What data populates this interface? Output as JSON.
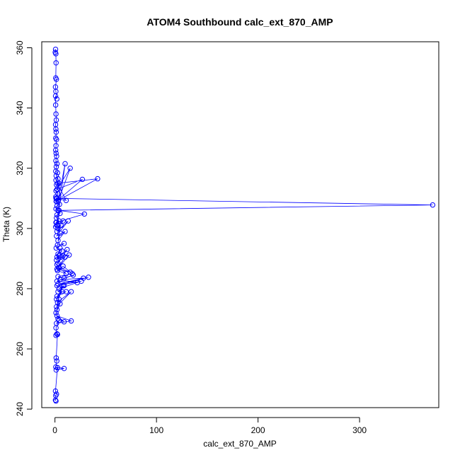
{
  "chart_data": {
    "type": "line",
    "title": "ATOM4 Southbound calc_ext_870_AMP",
    "xlabel": "calc_ext_870_AMP",
    "ylabel": "Theta (K)",
    "xlim": [
      -13,
      378
    ],
    "ylim": [
      240.5,
      362
    ],
    "x_ticks": [
      0,
      100,
      200,
      300
    ],
    "y_ticks": [
      240,
      260,
      280,
      300,
      320,
      340,
      360
    ],
    "grid": false,
    "colors": {
      "series": "#0000ff",
      "axis": "#000000"
    },
    "marker": "open-circle",
    "series": [
      {
        "x": [
          0.3,
          0.6,
          0.9,
          1.1,
          0.8,
          1.4,
          0.5,
          0.9,
          1.8,
          0.6,
          0.7,
          1.0,
          1.3,
          0.6,
          0.9,
          1.2,
          0.8,
          1.5,
          1.0,
          0.7,
          1.1,
          1.6,
          0.9,
          2.0,
          1.3,
          0.8,
          2.5,
          1.2,
          3.0,
          1.0,
          4.0,
          1.5,
          2.2,
          1.0,
          3.0,
          0.8,
          2.0,
          3.5,
          1.2,
          4.5,
          2.0,
          1.0,
          3.0,
          5.0,
          2.0,
          1.5,
          4.0,
          1.0,
          2.5,
          0.7,
          1.8,
          10.0,
          3.0,
          15.0,
          2.0,
          27.0,
          1.5,
          42.0,
          2.5,
          11.0,
          1.0,
          372.0,
          4.0,
          29.0,
          1.5,
          8.0,
          3.0,
          6.0,
          2.0,
          13.0,
          1.5,
          10.0,
          3.0,
          5.0,
          2.5,
          9.0,
          1.2,
          7.0,
          3.0,
          5.0,
          2.0,
          4.0,
          1.5,
          12.0,
          3.0,
          8.0,
          2.0,
          6.0,
          14.0,
          3.5,
          10.0,
          2.0,
          15.0,
          4.0,
          11.0,
          2.5,
          8.0,
          17.0,
          3.0,
          9.0,
          18.0,
          2.0,
          22.0,
          5.0,
          28.0,
          3.0,
          33.0,
          2.0,
          26.0,
          4.0,
          9.0,
          3.0,
          11.0,
          2.0,
          7.0,
          1.5,
          8.0,
          2.5,
          16.0,
          1.5,
          4.0,
          2.0,
          5.0,
          1.0,
          3.0,
          9.0,
          2.0,
          16.0,
          1.5,
          4.0,
          1.0,
          2.0,
          1.0,
          2.5,
          1.2,
          1.8,
          0.8,
          9.0,
          1.2,
          2.5,
          0.5,
          1.5,
          0.8,
          0.5,
          1.0
        ],
        "y": [
          358.5,
          359.5,
          358.0,
          355.0,
          350.0,
          349.5,
          347.0,
          345.5,
          343.0,
          344.0,
          341.0,
          338.0,
          336.0,
          334.5,
          333.0,
          332.0,
          330.0,
          329.5,
          327.5,
          326.0,
          325.0,
          324.0,
          322.5,
          321.5,
          320.5,
          319.0,
          318.5,
          317.5,
          316.5,
          316.0,
          315.0,
          314.5,
          313.0,
          312.5,
          311.5,
          310.5,
          310.0,
          309.5,
          309.0,
          308.0,
          307.5,
          306.5,
          306.0,
          305.0,
          304.5,
          303.5,
          302.5,
          302.0,
          301.0,
          300.5,
          301.0,
          321.5,
          309.0,
          320.0,
          313.0,
          316.3,
          309.0,
          316.5,
          315.0,
          309.3,
          310.0,
          307.8,
          306.0,
          304.8,
          302.0,
          302.5,
          300.0,
          301.0,
          299.0,
          302.5,
          297.5,
          299.0,
          296.0,
          298.5,
          294.5,
          295.0,
          293.5,
          292.5,
          291.5,
          293.5,
          290.5,
          291.0,
          289.5,
          293.0,
          288.5,
          291.0,
          288.0,
          290.5,
          291.2,
          287.0,
          290.5,
          286.5,
          285.5,
          287.0,
          285.0,
          286.0,
          287.5,
          285.0,
          284.0,
          283.5,
          284.5,
          282.5,
          282.0,
          283.0,
          283.5,
          281.5,
          283.8,
          281.0,
          282.5,
          280.0,
          281.0,
          279.0,
          279.0,
          277.5,
          279.0,
          276.5,
          281.0,
          275.5,
          279.0,
          274.0,
          276.5,
          273.0,
          275.0,
          272.0,
          270.0,
          269.0,
          271.0,
          269.3,
          268.5,
          269.5,
          267.0,
          265.0,
          264.5,
          264.8,
          257.0,
          256.0,
          254.0,
          253.5,
          253.0,
          253.8,
          246.0,
          245.0,
          244.5,
          243.0,
          242.7
        ]
      }
    ]
  }
}
